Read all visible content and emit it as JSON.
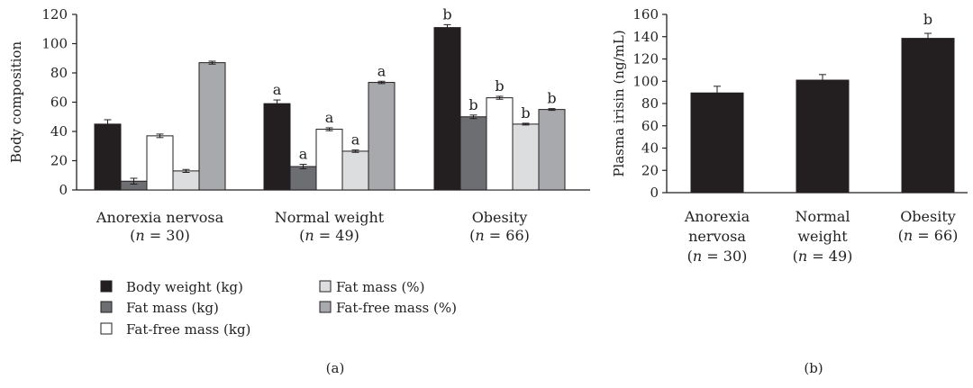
{
  "chart_data": [
    {
      "panel_label": "(a)",
      "type": "bar",
      "ylabel": "Body composition",
      "ylim": [
        0,
        120
      ],
      "yticks": [
        0,
        20,
        40,
        60,
        80,
        100,
        120
      ],
      "categories": [
        {
          "name": "Anorexia nervosa",
          "n": "(n = 30)"
        },
        {
          "name": "Normal weight",
          "n": "(n = 49)"
        },
        {
          "name": "Obesity",
          "n": "(n = 66)"
        }
      ],
      "series": [
        {
          "name": "Body weight (kg)",
          "color": "#231f20",
          "values": [
            45,
            59,
            111
          ],
          "errors": [
            3,
            2.5,
            2
          ],
          "labels": [
            "",
            "a",
            "b"
          ]
        },
        {
          "name": "Fat mass (kg)",
          "color": "#6d6e71",
          "values": [
            6,
            16,
            50
          ],
          "errors": [
            2,
            1.5,
            1.2
          ],
          "labels": [
            "",
            "a",
            "b"
          ]
        },
        {
          "name": "Fat-free mass (kg)",
          "color": "#ffffff",
          "values": [
            37,
            41.5,
            63
          ],
          "errors": [
            1.2,
            1,
            1
          ],
          "labels": [
            "",
            "a",
            "b"
          ]
        },
        {
          "name": "Fat mass (%)",
          "color": "#dcddde",
          "values": [
            13,
            26.5,
            45
          ],
          "errors": [
            1,
            0.8,
            0.6
          ],
          "labels": [
            "",
            "a",
            "b"
          ]
        },
        {
          "name": "Fat-free mass (%)",
          "color": "#a7a9ac",
          "values": [
            87,
            73.5,
            55
          ],
          "errors": [
            1,
            0.8,
            0.6
          ],
          "labels": [
            "",
            "a",
            "b"
          ]
        }
      ]
    },
    {
      "panel_label": "(b)",
      "type": "bar",
      "ylabel": "Plasma irisin (ng/mL)",
      "ylim": [
        0,
        160
      ],
      "yticks": [
        0,
        20,
        40,
        60,
        80,
        100,
        120,
        140,
        160
      ],
      "categories": [
        {
          "name": "Anorexia nervosa",
          "n": "(n = 30)"
        },
        {
          "name": "Normal weight",
          "n": "(n = 49)"
        },
        {
          "name": "Obesity",
          "n": "(n = 66)"
        }
      ],
      "series": [
        {
          "name": "Plasma irisin",
          "color": "#231f20",
          "values": [
            89.5,
            101,
            138.5
          ],
          "errors": [
            6,
            5,
            4.5
          ],
          "labels": [
            "",
            "",
            "b"
          ]
        }
      ]
    }
  ]
}
